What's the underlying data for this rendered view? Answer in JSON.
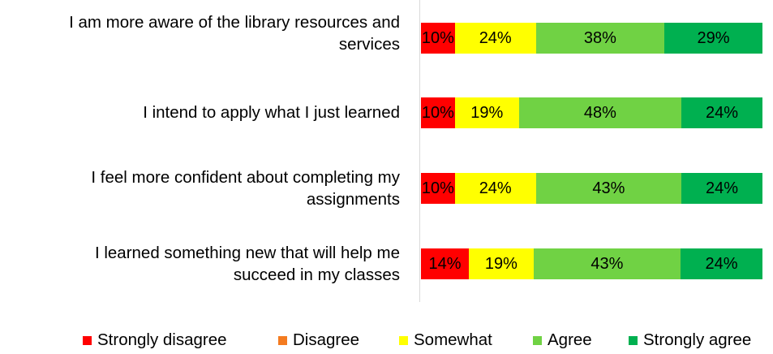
{
  "chart_data": {
    "type": "bar",
    "orientation": "horizontal",
    "stacked": true,
    "title": "",
    "xlabel": "",
    "ylabel": "",
    "categories": [
      "I am more aware of the library resources and services",
      "I intend to apply what I just learned",
      "I feel more confident about completing my assignments",
      "I learned something new that will help me succeed in my classes"
    ],
    "category_lines": [
      [
        "I am more aware of the library resources and",
        "services"
      ],
      [
        "I intend to apply what I just learned"
      ],
      [
        "I feel more confident about completing my",
        "assignments"
      ],
      [
        "I learned something new that will help me",
        "succeed in my classes"
      ]
    ],
    "series": [
      {
        "name": "Strongly disagree",
        "color": "#FF0000",
        "values": [
          10,
          10,
          10,
          14
        ]
      },
      {
        "name": "Disagree",
        "color": "#F47B20",
        "values": [
          0,
          0,
          0,
          0
        ]
      },
      {
        "name": "Somewhat",
        "color": "#FFFF00",
        "values": [
          24,
          19,
          24,
          19
        ]
      },
      {
        "name": "Agree",
        "color": "#70D244",
        "values": [
          38,
          48,
          43,
          43
        ]
      },
      {
        "name": "Strongly agree",
        "color": "#00B050",
        "values": [
          29,
          24,
          24,
          24
        ]
      }
    ],
    "data_labels": [
      [
        "10%",
        "24%",
        "38%",
        "29%"
      ],
      [
        "10%",
        "19%",
        "48%",
        "24%"
      ],
      [
        "10%",
        "24%",
        "43%",
        "24%"
      ],
      [
        "14%",
        "19%",
        "43%",
        "24%"
      ]
    ],
    "value_unit": "%",
    "xlim": [
      0,
      100
    ],
    "grid": false,
    "legend_position": "bottom"
  },
  "rows": [
    {
      "label_line1": "I am more aware of the library resources and",
      "label_line2": "services",
      "segments": [
        {
          "label": "10%",
          "value": 10,
          "color": "#FF0000"
        },
        {
          "label": "24%",
          "value": 24,
          "color": "#FFFF00"
        },
        {
          "label": "38%",
          "value": 38,
          "color": "#70D244"
        },
        {
          "label": "29%",
          "value": 29,
          "color": "#00B050"
        }
      ]
    },
    {
      "label_line1": "I intend to apply what I just learned",
      "label_line2": "",
      "segments": [
        {
          "label": "10%",
          "value": 10,
          "color": "#FF0000"
        },
        {
          "label": "19%",
          "value": 19,
          "color": "#FFFF00"
        },
        {
          "label": "48%",
          "value": 48,
          "color": "#70D244"
        },
        {
          "label": "24%",
          "value": 24,
          "color": "#00B050"
        }
      ]
    },
    {
      "label_line1": "I feel more confident about completing my",
      "label_line2": "assignments",
      "segments": [
        {
          "label": "10%",
          "value": 10,
          "color": "#FF0000"
        },
        {
          "label": "24%",
          "value": 24,
          "color": "#FFFF00"
        },
        {
          "label": "43%",
          "value": 43,
          "color": "#70D244"
        },
        {
          "label": "24%",
          "value": 24,
          "color": "#00B050"
        }
      ]
    },
    {
      "label_line1": "I learned something new that will help me",
      "label_line2": "succeed in my classes",
      "segments": [
        {
          "label": "14%",
          "value": 14,
          "color": "#FF0000"
        },
        {
          "label": "19%",
          "value": 19,
          "color": "#FFFF00"
        },
        {
          "label": "43%",
          "value": 43,
          "color": "#70D244"
        },
        {
          "label": "24%",
          "value": 24,
          "color": "#00B050"
        }
      ]
    }
  ],
  "legend": [
    {
      "label": "Strongly disagree",
      "color": "#FF0000"
    },
    {
      "label": "Disagree",
      "color": "#F47B20"
    },
    {
      "label": "Somewhat",
      "color": "#FFFF00"
    },
    {
      "label": "Agree",
      "color": "#70D244"
    },
    {
      "label": "Strongly agree",
      "color": "#00B050"
    }
  ]
}
